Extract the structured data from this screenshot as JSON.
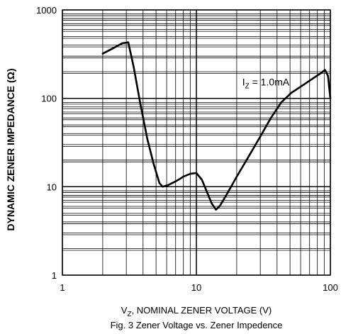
{
  "chart_data": {
    "type": "line",
    "title": "",
    "caption": "Fig. 3  Zener Voltage vs. Zener Impedence",
    "xlabel": {
      "prefix": "V",
      "sub": "Z",
      "rest": ", NOMINAL ZENER VOLTAGE (V)"
    },
    "ylabel": "DYNAMIC ZENER IMPEDANCE (Ω)",
    "x_scale": "log",
    "y_scale": "log",
    "xlim": [
      1,
      100
    ],
    "ylim": [
      1,
      1000
    ],
    "x_ticks": [
      {
        "value": 1,
        "label": "1"
      },
      {
        "value": 10,
        "label": "10"
      },
      {
        "value": 100,
        "label": "100"
      }
    ],
    "y_ticks": [
      {
        "value": 1,
        "label": "1"
      },
      {
        "value": 10,
        "label": "10"
      },
      {
        "value": 100,
        "label": "100"
      },
      {
        "value": 1000,
        "label": "1000"
      }
    ],
    "grid": true,
    "annotation": {
      "prefix": "I",
      "sub": "Z",
      "rest": " = 1.0mA",
      "x": 22,
      "y": 140
    },
    "series": [
      {
        "color": "#000000",
        "x": [
          2.0,
          2.4,
          2.8,
          3.1,
          3.4,
          3.8,
          4.3,
          4.8,
          5.3,
          5.6,
          6.2,
          7.0,
          8.0,
          9.0,
          10.0,
          11.0,
          12.0,
          13.0,
          14.0,
          15.0,
          17.0,
          20.0,
          25.0,
          30.0,
          36.0,
          43.0,
          51.0,
          62.0,
          75.0,
          86.0,
          91.0,
          96.0,
          100.0
        ],
        "y": [
          320,
          370,
          420,
          430,
          230,
          90,
          35,
          18,
          11,
          10,
          10.5,
          11.5,
          13,
          14,
          14.3,
          12,
          8.7,
          6.5,
          5.5,
          6.1,
          8.4,
          13,
          23,
          37,
          60,
          90,
          115,
          140,
          170,
          195,
          210,
          180,
          100
        ]
      }
    ]
  }
}
